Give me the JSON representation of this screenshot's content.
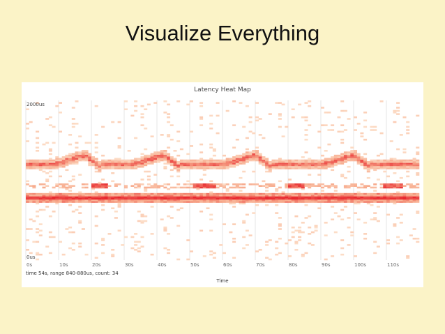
{
  "slide": {
    "title": "Visualize Everything"
  },
  "status_line": "time 54s, range 840-880us, count: 34",
  "chart_data": {
    "type": "heatmap",
    "title": "Latency Heat Map",
    "xlabel": "Time",
    "ylabel": "",
    "x_ticks": [
      "0s",
      "10s",
      "20s",
      "30s",
      "40s",
      "50s",
      "60s",
      "70s",
      "80s",
      "90s",
      "100s",
      "110s"
    ],
    "y_ticks": [
      "2000us",
      "0us"
    ],
    "xlim": [
      0,
      120
    ],
    "ylim_us": [
      0,
      2000
    ],
    "grid": true,
    "colors": {
      "low": "#fde4cf",
      "mid": "#f7a88a",
      "high": "#e8262d"
    },
    "bands": [
      {
        "name": "lower band",
        "center_us": 780,
        "intensity": 0.95
      },
      {
        "name": "upper band",
        "center_us": 1200,
        "intensity": 0.7,
        "periodic_bumps_at_s": [
          18,
          42,
          70,
          100
        ]
      },
      {
        "name": "middle band",
        "center_us": 930,
        "intensity": 0.6,
        "segments_s": [
          [
            20,
            25
          ],
          [
            51,
            58
          ],
          [
            80,
            85
          ],
          [
            109,
            115
          ]
        ]
      }
    ]
  }
}
